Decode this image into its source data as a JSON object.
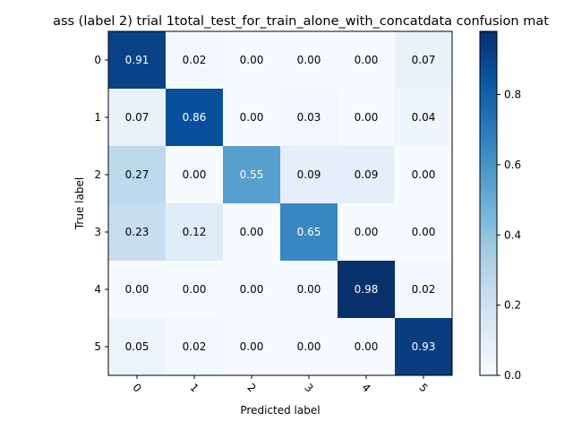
{
  "chart_data": {
    "type": "heatmap",
    "title": "ass (label 2) trial 1total_test_for_train_alone_with_concatdata confusion mat",
    "xlabel": "Predicted label",
    "ylabel": "True label",
    "x_categories": [
      "0",
      "1",
      "2",
      "3",
      "4",
      "5"
    ],
    "y_categories": [
      "0",
      "1",
      "2",
      "3",
      "4",
      "5"
    ],
    "values": [
      [
        0.91,
        0.02,
        0.0,
        0.0,
        0.0,
        0.07
      ],
      [
        0.07,
        0.86,
        0.0,
        0.03,
        0.0,
        0.04
      ],
      [
        0.27,
        0.0,
        0.55,
        0.09,
        0.09,
        0.0
      ],
      [
        0.23,
        0.12,
        0.0,
        0.65,
        0.0,
        0.0
      ],
      [
        0.0,
        0.0,
        0.0,
        0.0,
        0.98,
        0.02
      ],
      [
        0.05,
        0.02,
        0.0,
        0.0,
        0.0,
        0.93
      ]
    ],
    "value_format": "0.00",
    "colormap": "Blues",
    "colorbar": {
      "range": [
        0.0,
        0.98
      ],
      "ticks": [
        0.0,
        0.2,
        0.4,
        0.6,
        0.8
      ],
      "tick_labels": [
        "0.0",
        "0.2",
        "0.4",
        "0.6",
        "0.8"
      ]
    },
    "grid": false,
    "x_tick_rotation_deg": 45
  }
}
